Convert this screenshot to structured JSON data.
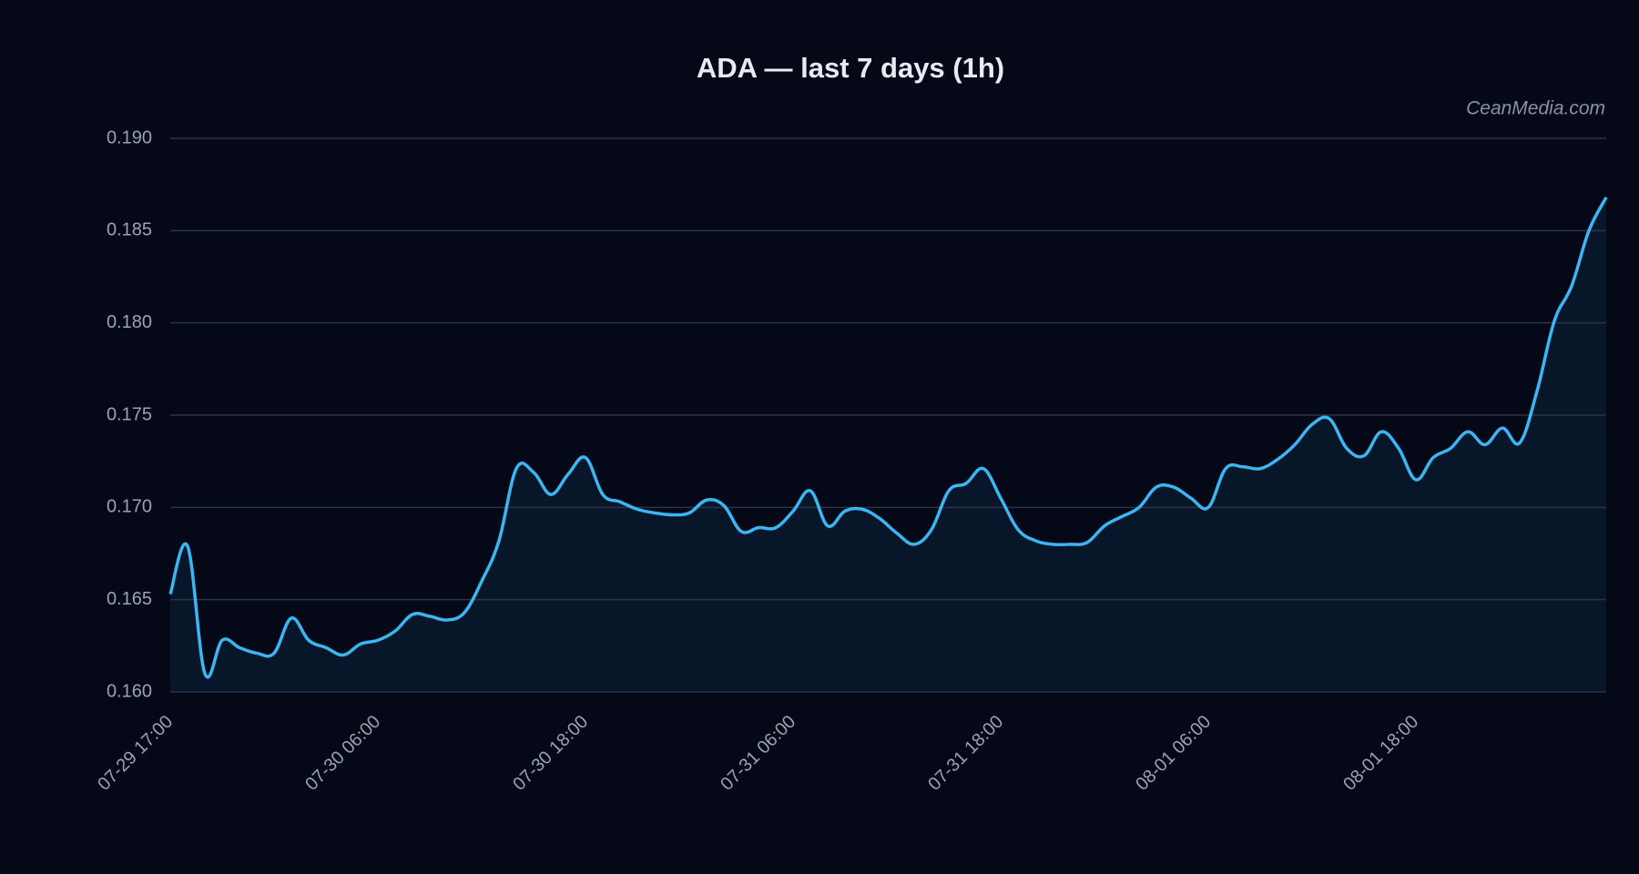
{
  "chart_data": {
    "type": "line",
    "title": "ADA — last 7 days (1h)",
    "watermark": "CeanMedia.com",
    "categories": [
      "07-29 17:00",
      null,
      null,
      null,
      null,
      null,
      null,
      null,
      null,
      null,
      null,
      null,
      "07-30 06:00",
      null,
      null,
      null,
      null,
      null,
      null,
      null,
      null,
      null,
      null,
      null,
      "07-30 18:00",
      null,
      null,
      null,
      null,
      null,
      null,
      null,
      null,
      null,
      null,
      null,
      "07-31 06:00",
      null,
      null,
      null,
      null,
      null,
      null,
      null,
      null,
      null,
      null,
      null,
      "07-31 18:00",
      null,
      null,
      null,
      null,
      null,
      null,
      null,
      null,
      null,
      null,
      null,
      "08-01 06:00",
      null,
      null,
      null,
      null,
      null,
      null,
      null,
      null,
      null,
      null,
      null,
      "08-01 18:00",
      null,
      null,
      null,
      null,
      null,
      null,
      null,
      null,
      null,
      null,
      null
    ],
    "values": [
      0.1653,
      0.1679,
      0.161,
      0.1628,
      0.1624,
      0.1621,
      0.1621,
      0.164,
      0.1628,
      0.1624,
      0.162,
      0.1626,
      0.1628,
      0.1633,
      0.1642,
      0.1641,
      0.1639,
      0.1643,
      0.166,
      0.1682,
      0.1721,
      0.1719,
      0.1707,
      0.1718,
      0.1727,
      0.1707,
      0.1703,
      0.1699,
      0.1697,
      0.1696,
      0.1697,
      0.1704,
      0.1701,
      0.1687,
      0.1689,
      0.1689,
      0.1698,
      0.1709,
      0.169,
      0.1698,
      0.1699,
      0.1694,
      0.1686,
      0.168,
      0.1688,
      0.1709,
      0.1713,
      0.1721,
      0.1705,
      0.1688,
      0.1682,
      0.168,
      0.168,
      0.1681,
      0.169,
      0.1695,
      0.17,
      0.1711,
      0.1711,
      0.1705,
      0.17,
      0.1721,
      0.1722,
      0.1721,
      0.1726,
      0.1734,
      0.1745,
      0.1748,
      0.1732,
      0.1728,
      0.1741,
      0.1732,
      0.1715,
      0.1727,
      0.1732,
      0.1741,
      0.1734,
      0.1743,
      0.1735,
      0.1763,
      0.1801,
      0.182,
      0.185,
      0.1868
    ],
    "color": "#3cb6f3",
    "fill_color": "#071629",
    "ylim": [
      0.16,
      0.19
    ],
    "yticks": [
      {
        "value": 0.16,
        "label": "0.160"
      },
      0.165,
      {
        "value": 0.17,
        "label": "0.170"
      },
      0.175,
      {
        "value": 0.18,
        "label": "0.180"
      },
      0.185,
      {
        "value": 0.19,
        "label": "0.190"
      }
    ],
    "grid": true
  }
}
